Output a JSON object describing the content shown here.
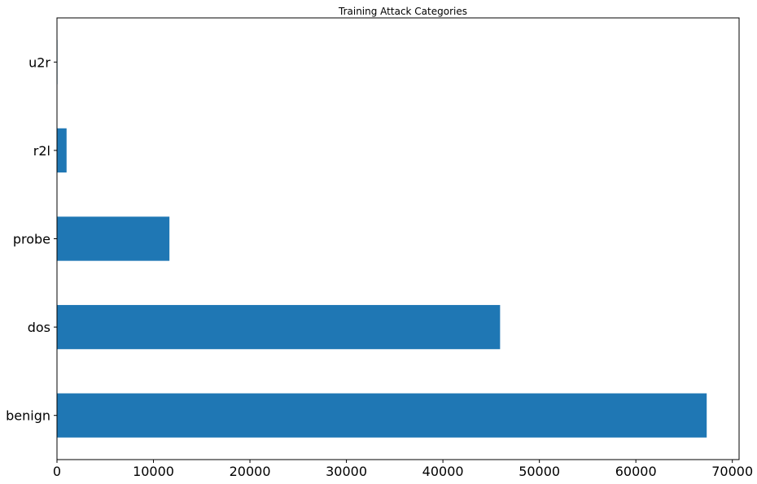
{
  "chart_data": {
    "type": "bar",
    "orientation": "horizontal",
    "title": "Training Attack Categories",
    "xlabel": "",
    "ylabel": "",
    "categories": [
      "benign",
      "dos",
      "probe",
      "r2l",
      "u2r"
    ],
    "values": [
      67343,
      45927,
      11656,
      995,
      52
    ],
    "bar_color": "#1f77b4",
    "xlim": [
      0,
      70700
    ],
    "xticks": [
      0,
      10000,
      20000,
      30000,
      40000,
      50000,
      60000,
      70000
    ],
    "xtick_labels": [
      "0",
      "10000",
      "20000",
      "30000",
      "40000",
      "50000",
      "60000",
      "70000"
    ],
    "grid": false,
    "legend": "none"
  }
}
